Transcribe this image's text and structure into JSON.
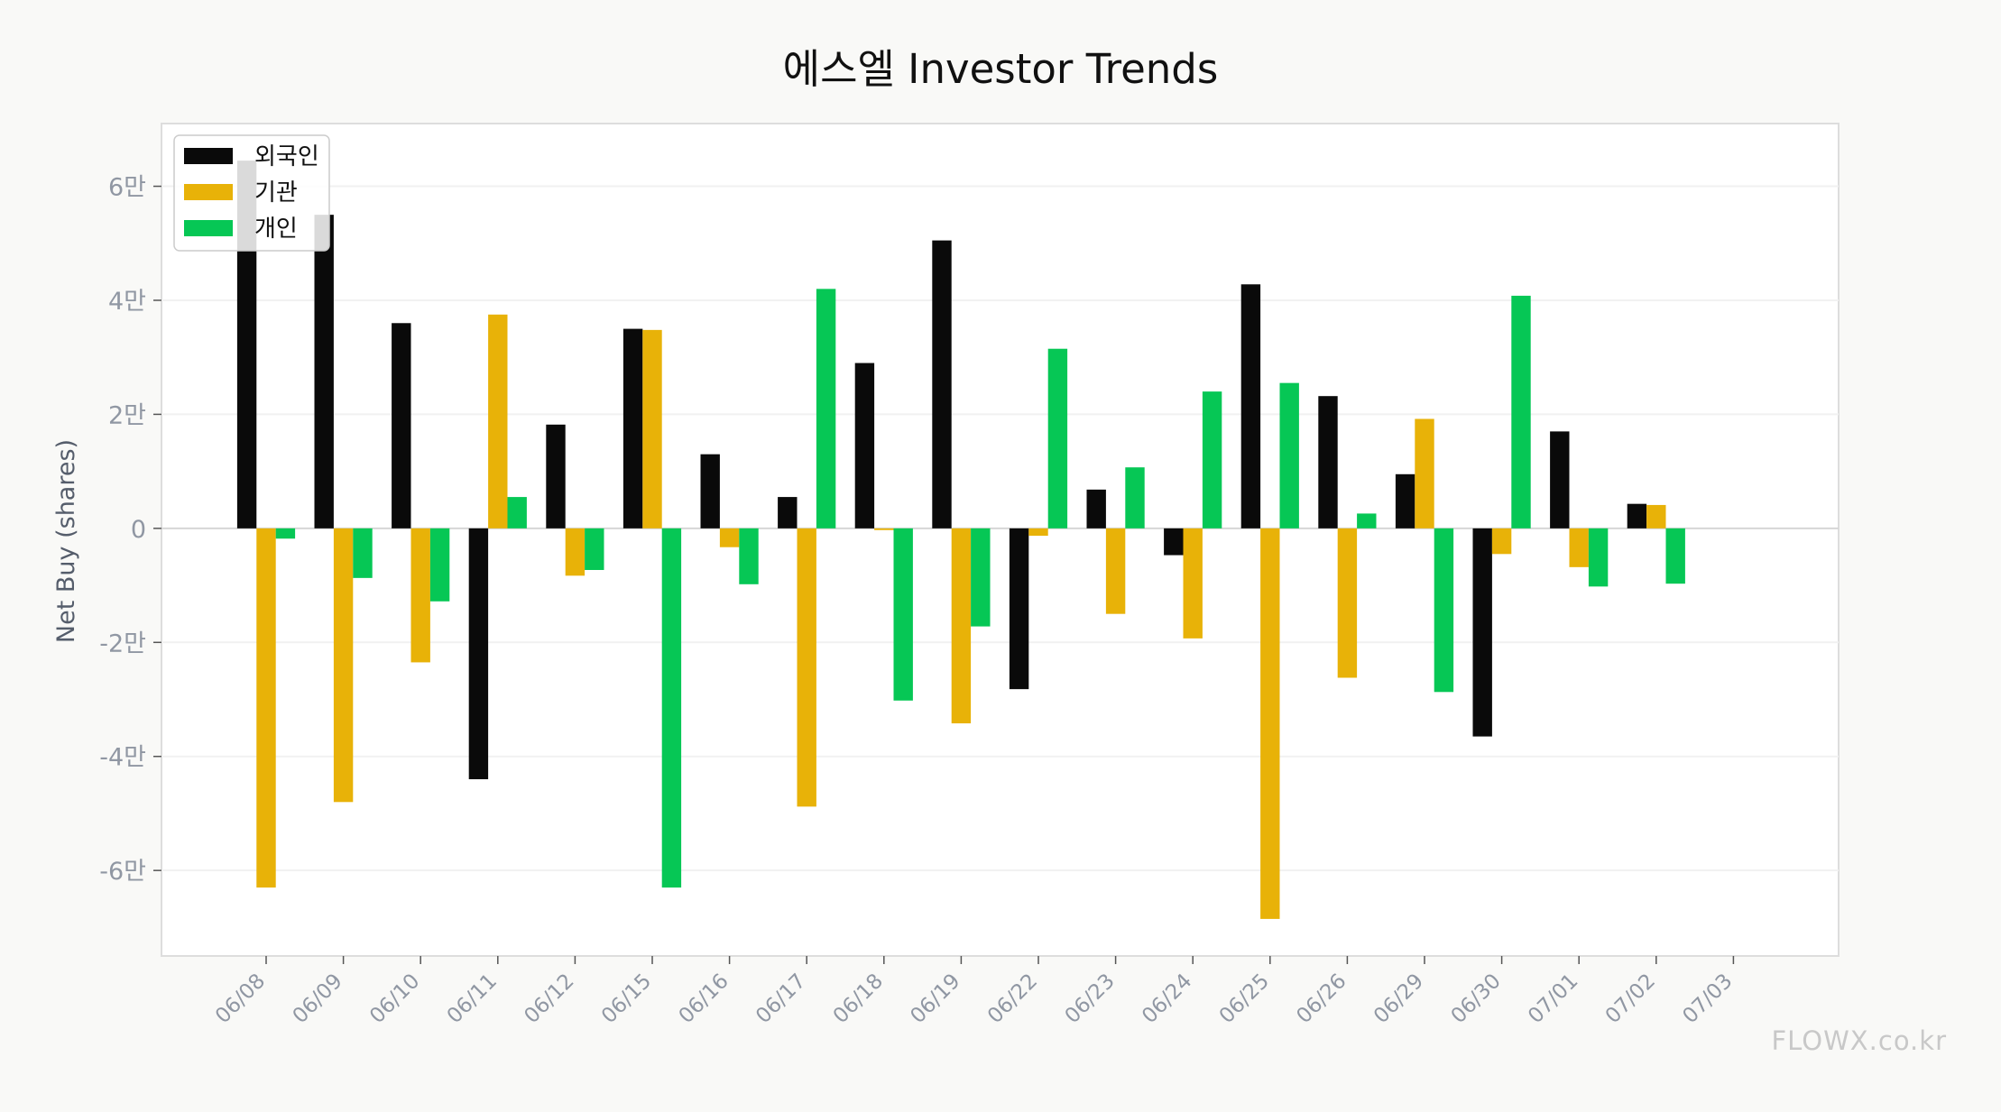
{
  "chart_data": {
    "type": "bar",
    "title": "에스엘 Investor Trends",
    "ylabel": "Net Buy (shares)",
    "xlabel": "",
    "ylim": [
      -75000,
      71000
    ],
    "yticks": [
      {
        "value": 60000,
        "label": "6만"
      },
      {
        "value": 40000,
        "label": "4만"
      },
      {
        "value": 20000,
        "label": "2만"
      },
      {
        "value": 0,
        "label": "0"
      },
      {
        "value": -20000,
        "label": "-2만"
      },
      {
        "value": -40000,
        "label": "-4만"
      },
      {
        "value": -60000,
        "label": "-6만"
      }
    ],
    "grid": true,
    "legend_position": "top-left",
    "categories": [
      "06/08",
      "06/09",
      "06/10",
      "06/11",
      "06/12",
      "06/15",
      "06/16",
      "06/17",
      "06/18",
      "06/19",
      "06/22",
      "06/23",
      "06/24",
      "06/25",
      "06/26",
      "06/29",
      "06/30",
      "07/01",
      "07/02",
      "07/03"
    ],
    "series": [
      {
        "name": "외국인",
        "color": "#0a0a0a",
        "values": [
          64500,
          55000,
          36000,
          -44000,
          18200,
          35000,
          13000,
          5500,
          29000,
          50500,
          -28200,
          6800,
          -4700,
          42800,
          23200,
          9500,
          -36500,
          17000,
          4300,
          0
        ]
      },
      {
        "name": "기관",
        "color": "#e8b208",
        "values": [
          -63000,
          -48000,
          -23500,
          37500,
          -8300,
          34800,
          -3300,
          -48800,
          -300,
          -34200,
          -1300,
          -15000,
          -19300,
          -68500,
          -26200,
          19200,
          -4500,
          -6800,
          4100,
          0
        ]
      },
      {
        "name": "개인",
        "color": "#06c755",
        "values": [
          -1800,
          -8700,
          -12800,
          5500,
          -7300,
          -63000,
          -9800,
          42000,
          -30200,
          -17200,
          31500,
          10700,
          24000,
          25500,
          2600,
          -28700,
          40800,
          -10200,
          -9700,
          0
        ]
      }
    ],
    "watermark": "FLOWX.co.kr"
  }
}
